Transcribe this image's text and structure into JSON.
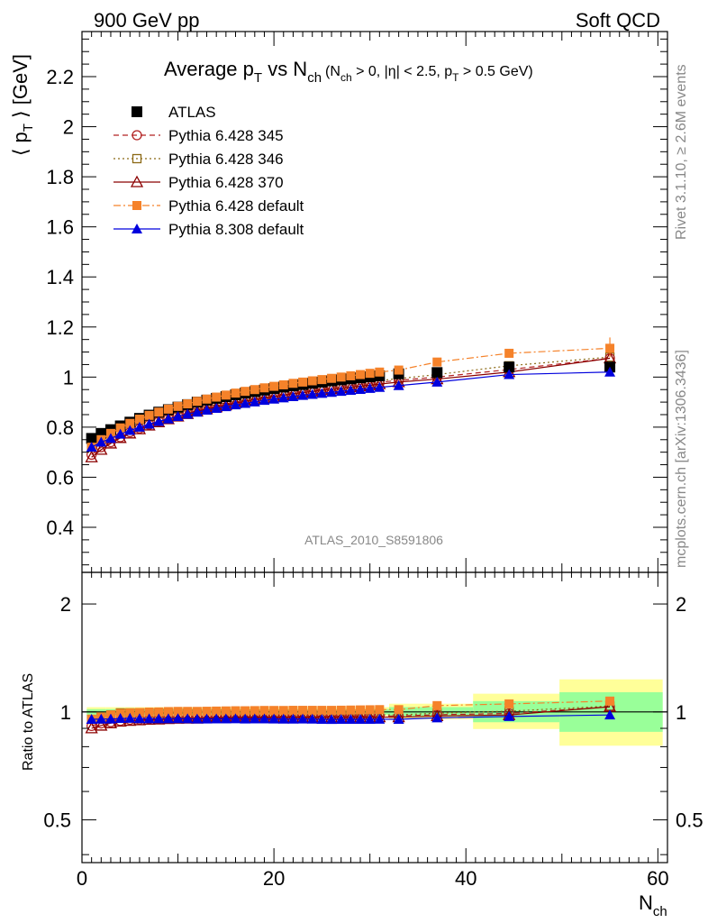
{
  "header": {
    "left": "900 GeV pp",
    "right": "Soft QCD"
  },
  "side": {
    "rivet": "Rivet 3.1.10, ≥ 2.6M events",
    "mcplots": "mcplots.cern.ch [arXiv:1306.3436]"
  },
  "watermark": "ATLAS_2010_S8591806",
  "colors": {
    "atlas": "#000000",
    "p345": "#b22222",
    "p346": "#8b6914",
    "p370": "#8b0000",
    "p6def": "#f5822a",
    "p8def": "#0000dd",
    "band_inner": "#99ff99",
    "band_outer": "#ffff99"
  },
  "chart_data": [
    {
      "type": "scatter",
      "panel": "main",
      "title": "Average p_T vs N_ch (N_ch > 0, |η| < 2.5, p_T > 0.5 GeV)",
      "title_parts": {
        "t1": "Average p",
        "t1_sub": "T",
        "t2": " vs N",
        "t2_sub": "ch",
        "t3": "(N",
        "t3_sub": "ch",
        "t4": " > 0, |η| < 2.5, p",
        "t4_sub": "T",
        "t5": " > 0.5 GeV)"
      },
      "ylabel": "⟨ p_T ⟩ [GeV]",
      "ylabel_parts": {
        "a": "⟨ p",
        "sub": "T",
        "b": " ⟩ [GeV]"
      },
      "xlabel": "N_ch",
      "xlim": [
        0,
        61
      ],
      "ylim": [
        0.22,
        2.38
      ],
      "y_ticks": [
        "0.4",
        "0.6",
        "0.8",
        "1",
        "1.2",
        "1.4",
        "1.6",
        "1.8",
        "2",
        "2.2"
      ],
      "legend_position": "top-left",
      "x": [
        1,
        2,
        3,
        4,
        5,
        6,
        7,
        8,
        9,
        10,
        11,
        12,
        13,
        14,
        15,
        16,
        17,
        18,
        19,
        20,
        21,
        22,
        23,
        24,
        25,
        26,
        27,
        28,
        29,
        30,
        31,
        33,
        37,
        44.5,
        55
      ],
      "series": [
        {
          "name": "ATLAS",
          "key": "atlas",
          "marker": "square",
          "line": "none",
          "values": [
            0.755,
            0.775,
            0.79,
            0.805,
            0.82,
            0.835,
            0.848,
            0.86,
            0.87,
            0.88,
            0.89,
            0.9,
            0.908,
            0.915,
            0.922,
            0.929,
            0.936,
            0.942,
            0.948,
            0.954,
            0.96,
            0.965,
            0.97,
            0.975,
            0.98,
            0.985,
            0.989,
            0.993,
            0.997,
            1.001,
            1.005,
            1.013,
            1.018,
            1.04,
            1.04
          ]
        },
        {
          "name": "Pythia 6.428 345",
          "key": "p345",
          "marker": "circle-open",
          "line": "dashed",
          "values": [
            0.69,
            0.72,
            0.74,
            0.76,
            0.78,
            0.795,
            0.81,
            0.823,
            0.835,
            0.846,
            0.856,
            0.866,
            0.875,
            0.884,
            0.892,
            0.9,
            0.907,
            0.914,
            0.921,
            0.927,
            0.933,
            0.939,
            0.944,
            0.949,
            0.954,
            0.959,
            0.963,
            0.967,
            0.971,
            0.975,
            0.979,
            0.987,
            1.0,
            1.03,
            1.075
          ]
        },
        {
          "name": "Pythia 6.428 346",
          "key": "p346",
          "marker": "square-open",
          "line": "dotted",
          "values": [
            0.72,
            0.75,
            0.775,
            0.8,
            0.815,
            0.83,
            0.842,
            0.853,
            0.863,
            0.872,
            0.881,
            0.889,
            0.897,
            0.904,
            0.911,
            0.917,
            0.923,
            0.929,
            0.935,
            0.94,
            0.945,
            0.95,
            0.955,
            0.959,
            0.963,
            0.967,
            0.971,
            0.975,
            0.979,
            0.983,
            0.986,
            0.994,
            1.01,
            1.045,
            1.08
          ]
        },
        {
          "name": "Pythia 6.428 370",
          "key": "p370",
          "marker": "triangle-open",
          "line": "solid",
          "values": [
            0.68,
            0.71,
            0.735,
            0.757,
            0.775,
            0.792,
            0.807,
            0.82,
            0.832,
            0.843,
            0.853,
            0.863,
            0.872,
            0.88,
            0.888,
            0.896,
            0.903,
            0.91,
            0.916,
            0.922,
            0.928,
            0.933,
            0.938,
            0.943,
            0.948,
            0.952,
            0.956,
            0.96,
            0.964,
            0.968,
            0.972,
            0.98,
            0.992,
            1.02,
            1.075
          ]
        },
        {
          "name": "Pythia 6.428 default",
          "key": "p6def",
          "marker": "square",
          "line": "dashdot",
          "values": [
            0.72,
            0.75,
            0.775,
            0.797,
            0.815,
            0.832,
            0.847,
            0.86,
            0.872,
            0.883,
            0.893,
            0.903,
            0.912,
            0.92,
            0.928,
            0.936,
            0.943,
            0.95,
            0.957,
            0.963,
            0.969,
            0.975,
            0.98,
            0.985,
            0.99,
            0.995,
            1.0,
            1.005,
            1.01,
            1.015,
            1.02,
            1.028,
            1.06,
            1.095,
            1.115
          ]
        },
        {
          "name": "Pythia 8.308 default",
          "key": "p8def",
          "marker": "triangle",
          "line": "solid",
          "values": [
            0.72,
            0.74,
            0.755,
            0.772,
            0.787,
            0.8,
            0.812,
            0.823,
            0.833,
            0.843,
            0.852,
            0.86,
            0.868,
            0.875,
            0.882,
            0.889,
            0.895,
            0.901,
            0.907,
            0.912,
            0.917,
            0.922,
            0.927,
            0.931,
            0.935,
            0.939,
            0.943,
            0.947,
            0.951,
            0.955,
            0.959,
            0.966,
            0.98,
            1.01,
            1.02
          ]
        }
      ]
    },
    {
      "type": "scatter",
      "panel": "ratio",
      "ylabel": "Ratio to ATLAS",
      "xlabel": "N_ch",
      "xlim": [
        0,
        61
      ],
      "ylim": [
        0.38,
        2.45
      ],
      "y_scale": "log",
      "x_ticks": [
        "0",
        "20",
        "40",
        "60"
      ],
      "y_ticks": [
        "0.5",
        "1",
        "2"
      ],
      "note": "reference line at 1 with green (stat) and yellow (total) uncertainty bands"
    }
  ]
}
